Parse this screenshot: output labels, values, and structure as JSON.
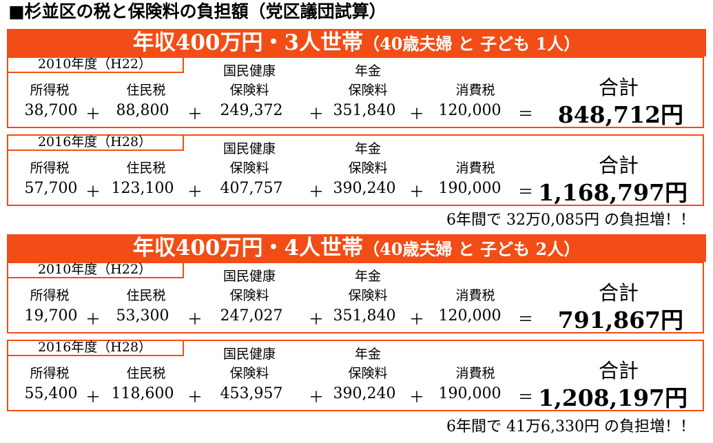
{
  "title": "■杉並区の税と保険料の負担額（党区議団試算）",
  "columns": {
    "income_tax": "所得税",
    "resident_tax": "住民税",
    "health_line1": "国民健康",
    "health_line2": "保険料",
    "pension_line1": "年金",
    "pension_line2": "保険料",
    "consumption_tax": "消費税",
    "sum": "合計"
  },
  "ops": {
    "plus": "＋",
    "equals": "＝"
  },
  "sections": [
    {
      "banner_main": "年収400万円・3人世帯",
      "banner_sub": "（40歳夫婦 と 子ども 1人）",
      "years": [
        {
          "label": "2010年度（H22）",
          "income_tax": "38,700",
          "resident_tax": "88,800",
          "health": "249,372",
          "pension": "351,840",
          "consumption": "120,000",
          "total": "848,712円"
        },
        {
          "label": "2016年度（H28）",
          "income_tax": "57,700",
          "resident_tax": "123,100",
          "health": "407,757",
          "pension": "390,240",
          "consumption": "190,000",
          "total": "1,168,797円"
        }
      ],
      "increase": "6年間で 32万0,085円 の負担増！！"
    },
    {
      "banner_main": "年収400万円・4人世帯",
      "banner_sub": "（40歳夫婦 と 子ども 2人）",
      "years": [
        {
          "label": "2010年度（H22）",
          "income_tax": "19,700",
          "resident_tax": "53,300",
          "health": "247,027",
          "pension": "351,840",
          "consumption": "120,000",
          "total": "791,867円"
        },
        {
          "label": "2016年度（H28）",
          "income_tax": "55,400",
          "resident_tax": "118,600",
          "health": "453,957",
          "pension": "390,240",
          "consumption": "190,000",
          "total": "1,208,197円"
        }
      ],
      "increase": "6年間で 41万6,330円 の負担増！！"
    }
  ]
}
